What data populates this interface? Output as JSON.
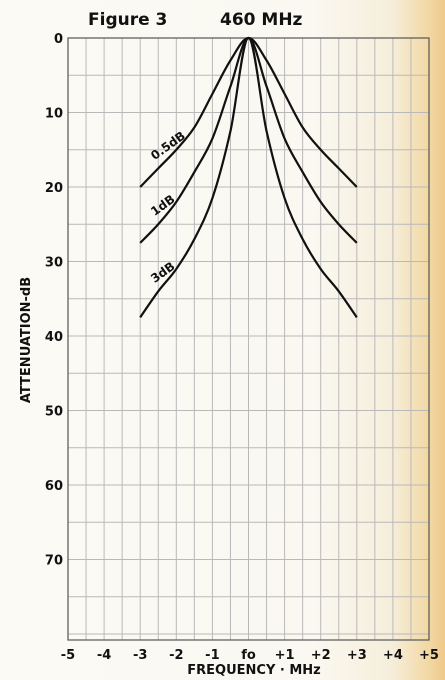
{
  "chart_data": {
    "type": "line",
    "title": "Figure 3",
    "subtitle": "460 MHz",
    "xlabel": "FREQUENCY · MHz",
    "ylabel": "ATTENUATION-dB",
    "xlim": [
      -5,
      5
    ],
    "ylim": [
      0,
      80
    ],
    "y_inverted": true,
    "grid": true,
    "x_tick_labels": [
      "-5",
      "-4",
      "-3",
      "-2",
      "-1",
      "fo",
      "+1",
      "+2",
      "+3",
      "+4",
      "+5"
    ],
    "y_tick_labels": [
      "0",
      "10",
      "20",
      "30",
      "40",
      "50",
      "60",
      "70"
    ],
    "series": [
      {
        "name": "0.5dB",
        "x": [
          -3,
          -2.5,
          -2,
          -1.5,
          -1,
          -0.5,
          0,
          0.5,
          1,
          1.5,
          2,
          2.5,
          3
        ],
        "y": [
          20,
          17.5,
          15,
          12,
          7.5,
          3,
          0,
          3,
          7.5,
          12,
          15,
          17.5,
          20
        ]
      },
      {
        "name": "1dB",
        "x": [
          -3,
          -2.5,
          -2,
          -1.5,
          -1,
          -0.5,
          0,
          0.5,
          1,
          1.5,
          2,
          2.5,
          3
        ],
        "y": [
          27.5,
          25,
          22,
          18,
          13.5,
          6.5,
          0,
          6.5,
          13.5,
          18,
          22,
          25,
          27.5
        ]
      },
      {
        "name": "3dB",
        "x": [
          -3,
          -2.5,
          -2,
          -1.5,
          -1,
          -0.5,
          0,
          0.5,
          1,
          1.5,
          2,
          2.5,
          3
        ],
        "y": [
          37.5,
          34,
          31,
          27,
          21.5,
          12.5,
          0,
          12.5,
          21.5,
          27,
          31,
          34,
          37.5
        ]
      }
    ]
  }
}
